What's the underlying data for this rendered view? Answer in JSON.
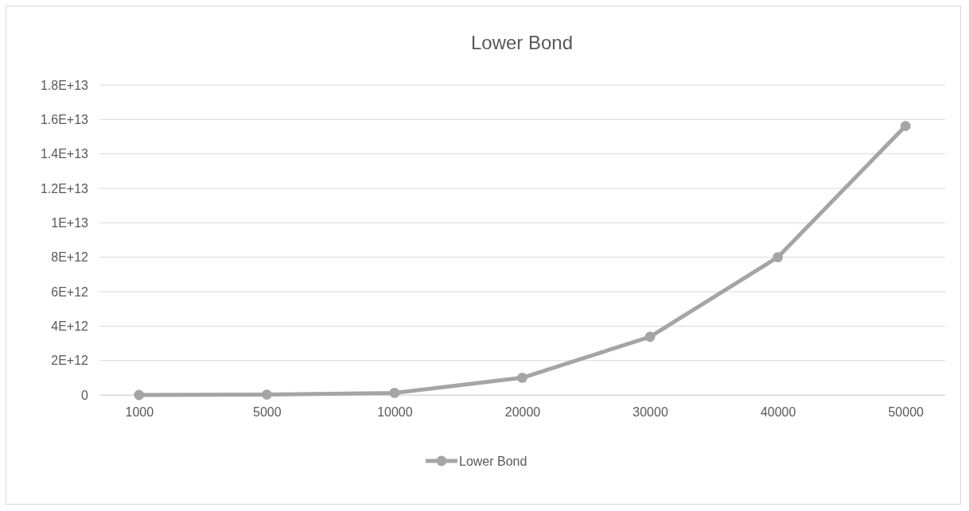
{
  "chart_data": {
    "type": "line",
    "title": "Lower Bond",
    "categories": [
      "1000",
      "5000",
      "10000",
      "20000",
      "30000",
      "40000",
      "50000"
    ],
    "series": [
      {
        "name": "Lower Bond",
        "color": "#a5a5a5",
        "values": [
          0,
          20000000000.0,
          120000000000.0,
          1000000000000.0,
          3380000000000.0,
          8000000000000.0,
          15620000000000.0
        ]
      }
    ],
    "ylim": [
      0,
      18000000000000.0
    ],
    "yticks": [
      0,
      {
        "value": 2000000000000.0,
        "label": "2E+12"
      },
      {
        "value": 4000000000000.0,
        "label": "4E+12"
      },
      {
        "value": 6000000000000.0,
        "label": "6E+12"
      },
      {
        "value": 8000000000000.0,
        "label": "8E+12"
      },
      {
        "value": 10000000000000.0,
        "label": "1E+13"
      },
      {
        "value": 12000000000000.0,
        "label": "1.2E+13"
      },
      {
        "value": 14000000000000.0,
        "label": "1.4E+13"
      },
      {
        "value": 16000000000000.0,
        "label": "1.6E+13"
      },
      {
        "value": 18000000000000.0,
        "label": "1.8E+13"
      }
    ],
    "grid": "y",
    "legend": "bottom",
    "marker": "circle",
    "line_style": "solid"
  }
}
